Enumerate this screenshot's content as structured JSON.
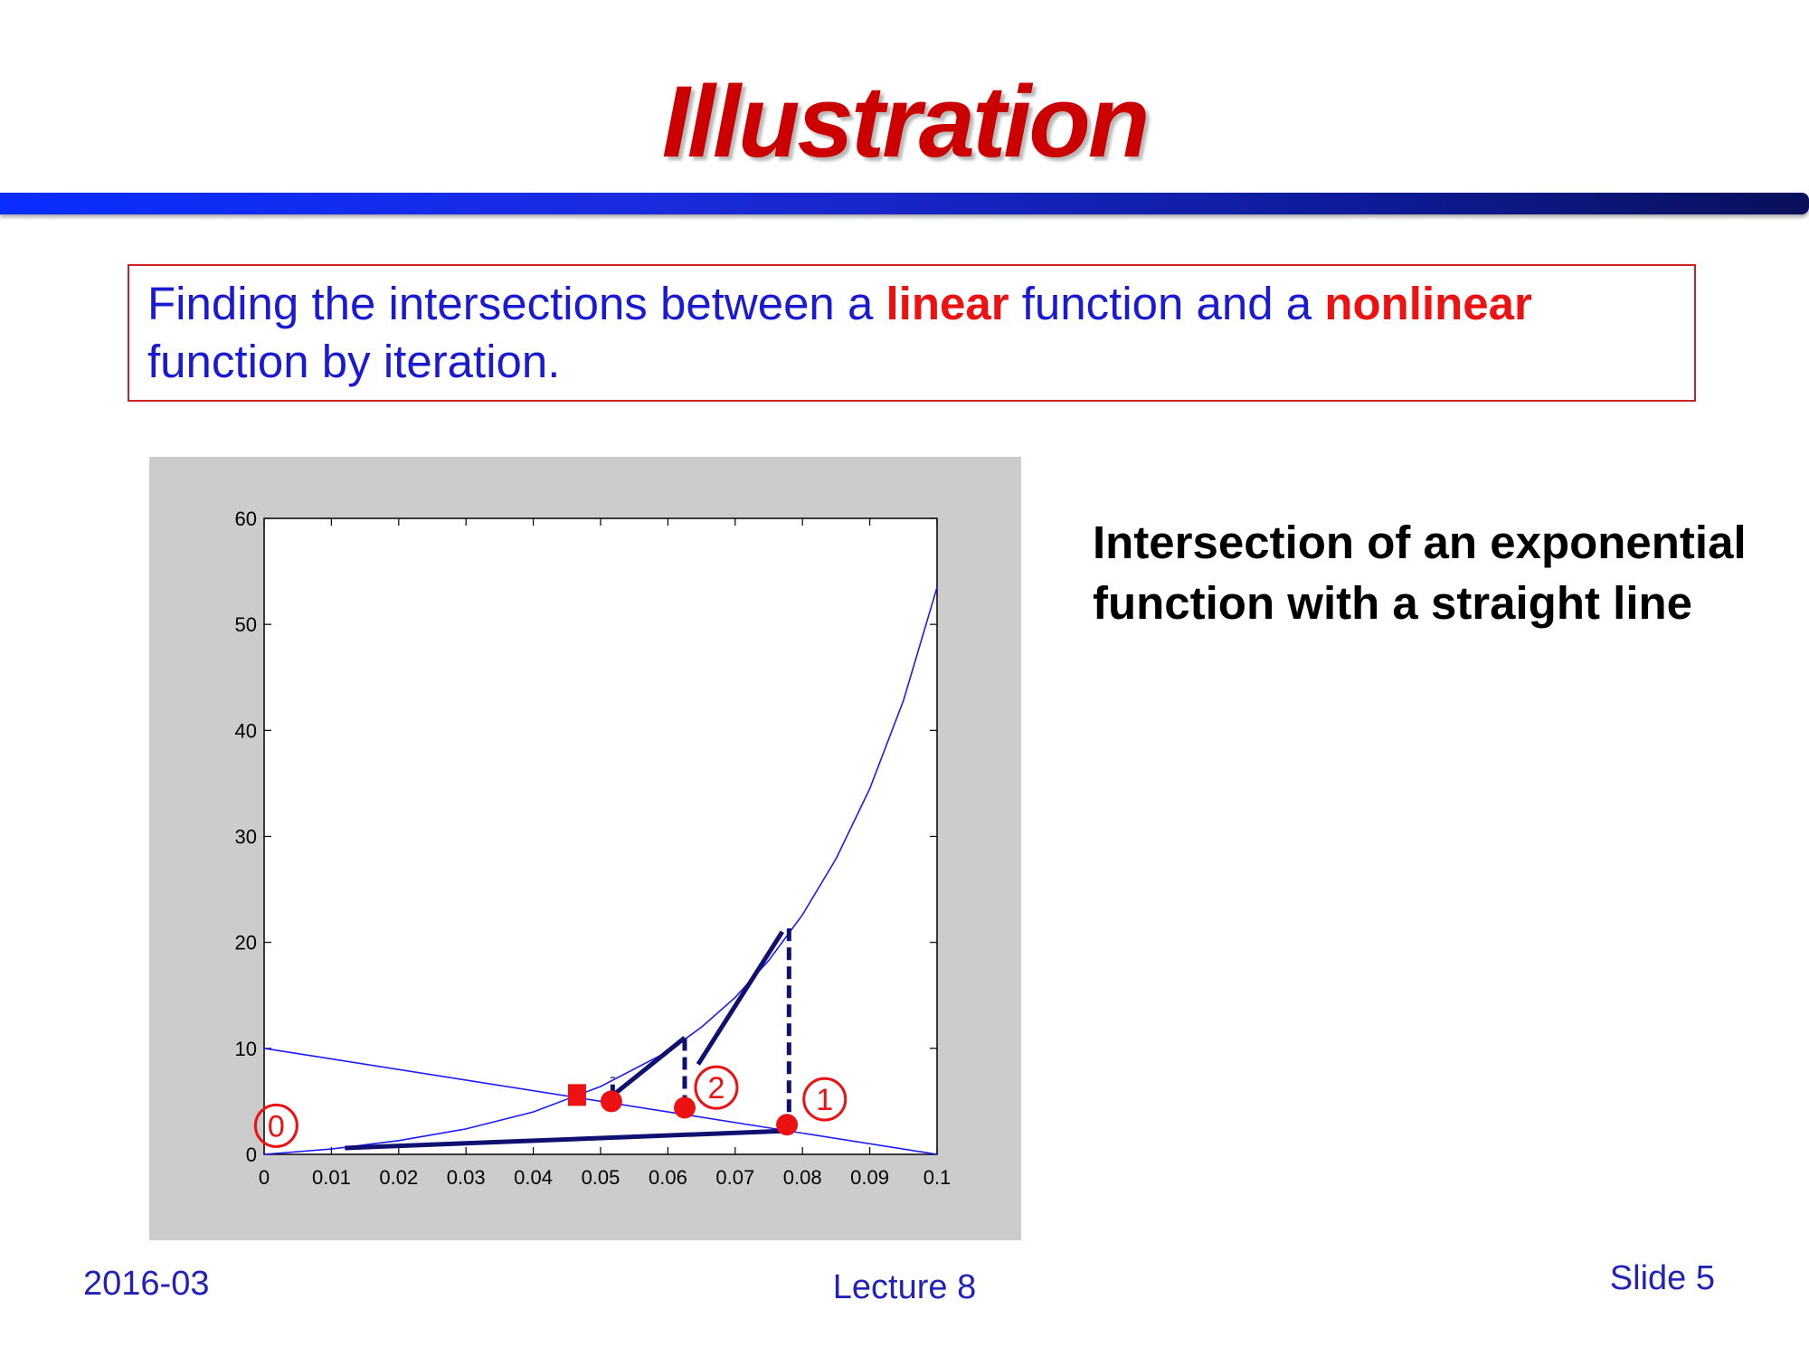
{
  "slide": {
    "title": "Illustration",
    "callout": {
      "part1": "Finding the intersections between a ",
      "linear": "linear",
      "part2": " function and a ",
      "nonlinear": "nonlinear",
      "part3": " function by iteration."
    },
    "side_text": "Intersection of an exponential function with a straight line",
    "footer": {
      "date": "2016-03",
      "lecture": "Lecture 8",
      "slide": "Slide 5"
    }
  },
  "colors": {
    "title": "#cc0000",
    "accent_red": "#ee1111",
    "curve_blue": "#1a1aff",
    "path_navy": "#101070",
    "text_blue": "#1a1ad4",
    "plot_bg": "#cccccc"
  },
  "chart_data": {
    "type": "line",
    "xlim": [
      0,
      0.1
    ],
    "ylim": [
      0,
      60
    ],
    "x_ticks": [
      "0",
      "0.01",
      "0.02",
      "0.03",
      "0.04",
      "0.05",
      "0.06",
      "0.07",
      "0.08",
      "0.09",
      "0.1"
    ],
    "y_ticks": [
      "0",
      "10",
      "20",
      "30",
      "40",
      "50",
      "60"
    ],
    "grid": false,
    "series": [
      {
        "kind": "exponential curve",
        "x": [
          0,
          0.01,
          0.02,
          0.03,
          0.04,
          0.05,
          0.06,
          0.065,
          0.07,
          0.075,
          0.08,
          0.085,
          0.09,
          0.095,
          0.1
        ],
        "y": [
          0,
          0.5,
          1.3,
          2.4,
          4.0,
          6.4,
          9.7,
          12.0,
          14.8,
          18.3,
          22.6,
          27.9,
          34.5,
          42.8,
          53.5
        ]
      },
      {
        "kind": "straight line",
        "x": [
          0,
          0.1
        ],
        "y": [
          10,
          0
        ]
      }
    ],
    "iteration_path": [
      {
        "style": "solid",
        "x": [
          0.012,
          0.077
        ],
        "y": [
          0.6,
          2.2
        ]
      },
      {
        "style": "dashed",
        "x": [
          0.078,
          0.078
        ],
        "y": [
          2.2,
          21.5
        ]
      },
      {
        "style": "solid",
        "x": [
          0.077,
          0.0645
        ],
        "y": [
          21.0,
          8.5
        ]
      },
      {
        "style": "dashed",
        "x": [
          0.0625,
          0.0625
        ],
        "y": [
          4.4,
          11.0
        ]
      },
      {
        "style": "solid",
        "x": [
          0.0625,
          0.0515
        ],
        "y": [
          11.0,
          5.4
        ]
      },
      {
        "style": "dashed",
        "x": [
          0.0518,
          0.0518
        ],
        "y": [
          5.4,
          7.3
        ]
      }
    ],
    "points": [
      {
        "shape": "circle",
        "x": 0.0516,
        "y": 5.0
      },
      {
        "shape": "circle",
        "x": 0.0625,
        "y": 4.4
      },
      {
        "shape": "circle",
        "x": 0.0777,
        "y": 2.8
      },
      {
        "shape": "square",
        "x": 0.0465,
        "y": 5.6
      }
    ],
    "annotations": [
      {
        "text": "0",
        "x": 0.0018,
        "y": 2.7
      },
      {
        "text": "2",
        "x": 0.0672,
        "y": 6.3
      },
      {
        "text": "1",
        "x": 0.0833,
        "y": 5.2
      }
    ]
  }
}
